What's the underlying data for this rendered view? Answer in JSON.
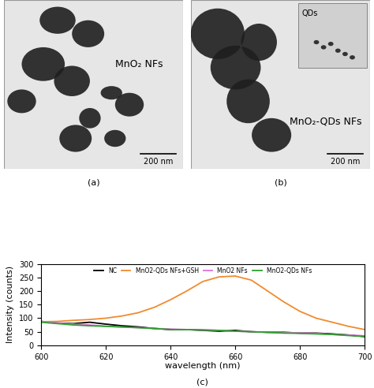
{
  "panels": {
    "a": {
      "label": "(a)",
      "image_text": "MnO₂ NFs",
      "scale_bar": "200 nm"
    },
    "b": {
      "label": "(b)",
      "image_text": "MnO₂-QDs NFs",
      "inset_text": "QDs",
      "scale_bar": "200 nm"
    }
  },
  "chart_data": {
    "type": "line",
    "panel_label": "(c)",
    "x_label": "wavelength (nm)",
    "y_label": "Intensity (counts)",
    "x": [
      600,
      605,
      610,
      615,
      620,
      625,
      630,
      635,
      640,
      645,
      650,
      655,
      660,
      665,
      670,
      675,
      680,
      685,
      690,
      695,
      700
    ],
    "series": [
      {
        "name": "NC",
        "color": "#000000",
        "values": [
          88,
          82,
          80,
          85,
          78,
          72,
          68,
          62,
          58,
          58,
          55,
          52,
          55,
          50,
          48,
          48,
          45,
          45,
          42,
          38,
          32
        ]
      },
      {
        "name": "MnO2-QDs NFs+GSH",
        "color": "#f28a2e",
        "values": [
          87,
          88,
          92,
          95,
          100,
          108,
          120,
          140,
          168,
          200,
          235,
          252,
          255,
          240,
          200,
          160,
          125,
          100,
          85,
          70,
          58
        ]
      },
      {
        "name": "MnO2 NFs",
        "color": "#e070d8",
        "values": [
          88,
          82,
          78,
          75,
          70,
          67,
          65,
          62,
          60,
          58,
          56,
          55,
          52,
          50,
          48,
          47,
          46,
          44,
          40,
          38,
          35
        ]
      },
      {
        "name": "MnO2-QDs NFs",
        "color": "#2ca02c",
        "values": [
          85,
          80,
          75,
          72,
          70,
          68,
          65,
          62,
          58,
          58,
          57,
          55,
          52,
          50,
          48,
          45,
          44,
          42,
          40,
          36,
          33
        ]
      }
    ],
    "xlim": [
      600,
      700
    ],
    "xticks": [
      600,
      620,
      640,
      660,
      680,
      700
    ],
    "ylim": [
      0,
      300
    ],
    "yticks": [
      0,
      50,
      100,
      150,
      200,
      250,
      300
    ],
    "grid": false,
    "legend": "upper center"
  }
}
